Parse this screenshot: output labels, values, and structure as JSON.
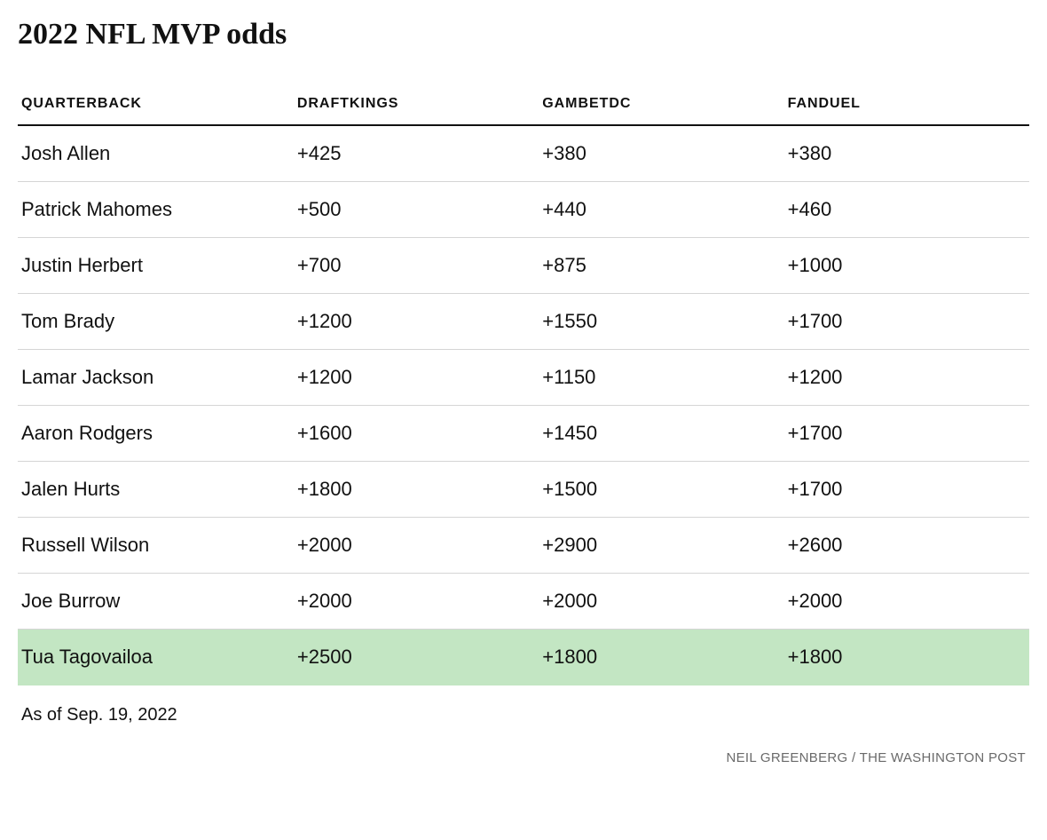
{
  "title": "2022 NFL MVP odds",
  "table": {
    "type": "table",
    "columns": [
      "QUARTERBACK",
      "DRAFTKINGS",
      "GAMBETDC",
      "FANDUEL"
    ],
    "rows": [
      {
        "name": "Josh Allen",
        "draftkings": "+425",
        "gambetdc": "+380",
        "fanduel": "+380",
        "highlight": false
      },
      {
        "name": "Patrick Mahomes",
        "draftkings": "+500",
        "gambetdc": "+440",
        "fanduel": "+460",
        "highlight": false
      },
      {
        "name": "Justin Herbert",
        "draftkings": "+700",
        "gambetdc": "+875",
        "fanduel": "+1000",
        "highlight": false
      },
      {
        "name": "Tom Brady",
        "draftkings": "+1200",
        "gambetdc": "+1550",
        "fanduel": "+1700",
        "highlight": false
      },
      {
        "name": "Lamar Jackson",
        "draftkings": "+1200",
        "gambetdc": "+1150",
        "fanduel": "+1200",
        "highlight": false
      },
      {
        "name": "Aaron Rodgers",
        "draftkings": "+1600",
        "gambetdc": "+1450",
        "fanduel": "+1700",
        "highlight": false
      },
      {
        "name": "Jalen Hurts",
        "draftkings": "+1800",
        "gambetdc": "+1500",
        "fanduel": "+1700",
        "highlight": false
      },
      {
        "name": "Russell Wilson",
        "draftkings": "+2000",
        "gambetdc": "+2900",
        "fanduel": "+2600",
        "highlight": false
      },
      {
        "name": "Joe Burrow",
        "draftkings": "+2000",
        "gambetdc": "+2000",
        "fanduel": "+2000",
        "highlight": false
      },
      {
        "name": "Tua Tagovailoa",
        "draftkings": "+2500",
        "gambetdc": "+1800",
        "fanduel": "+1800",
        "highlight": true
      }
    ],
    "header_border_color": "#111111",
    "row_border_color": "#d5d5d5",
    "highlight_color": "#c3e6c3",
    "background_color": "#ffffff",
    "header_fontsize": 16,
    "cell_fontsize": 22,
    "column_widths": [
      "27%",
      "24%",
      "24%",
      "24%"
    ]
  },
  "footnote": "As of Sep. 19, 2022",
  "credit": "NEIL GREENBERG / THE WASHINGTON POST"
}
